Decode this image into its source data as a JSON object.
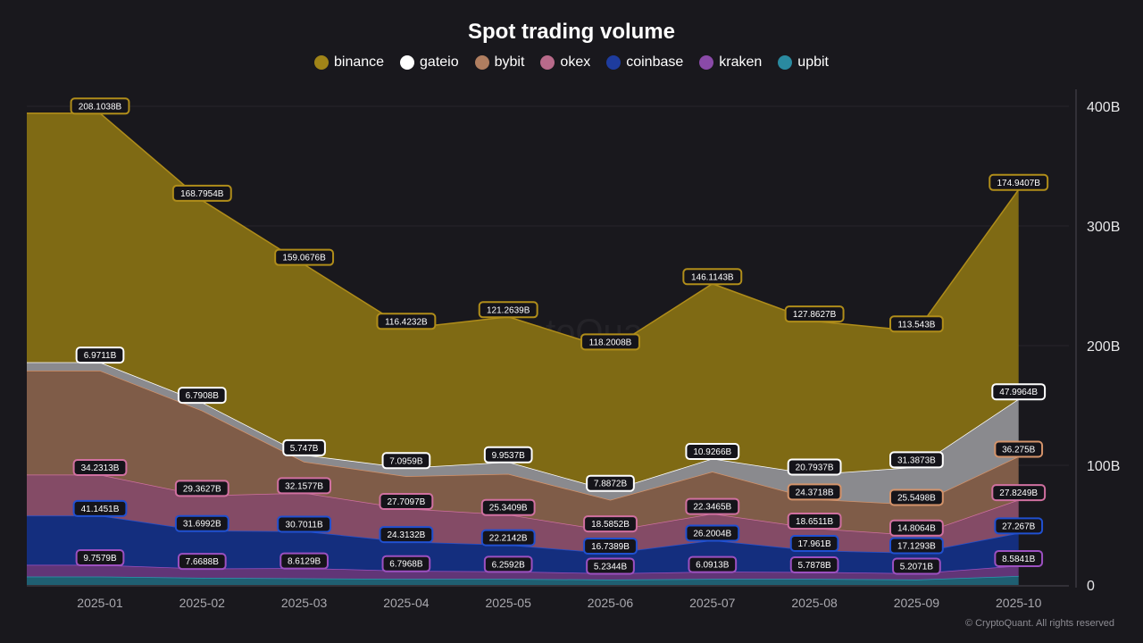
{
  "chart_data": {
    "type": "area",
    "stacked": true,
    "title": "Spot trading volume",
    "categories": [
      "2025-01",
      "2025-02",
      "2025-03",
      "2025-04",
      "2025-05",
      "2025-06",
      "2025-07",
      "2025-08",
      "2025-09",
      "2025-10"
    ],
    "ylim": [
      0,
      420
    ],
    "yticks": [
      "0",
      "100B",
      "200B",
      "300B",
      "400B"
    ],
    "ytick_values": [
      0,
      100,
      200,
      300,
      400
    ],
    "y_axis_side": "right",
    "grid": true,
    "legend_placement": "top",
    "series": [
      {
        "name": "upbit",
        "fill": "#1f5f72",
        "stroke": "#2a9ab0",
        "dot": "#2a8aa0",
        "values": [
          7,
          6,
          5.5,
          5,
          5,
          4.5,
          5,
          5,
          4.5,
          7.5
        ],
        "labels": [
          null,
          null,
          null,
          null,
          null,
          null,
          null,
          null,
          null,
          null
        ]
      },
      {
        "name": "kraken",
        "fill": "#613577",
        "stroke": "#9c50c0",
        "dot": "#8a4aa8",
        "values": [
          9.7579,
          7.6688,
          8.6129,
          6.7968,
          6.2592,
          5.2344,
          6.0913,
          5.7878,
          5.2071,
          8.5841
        ],
        "labels": [
          "9.7579B",
          "7.6688B",
          "8.6129B",
          "6.7968B",
          "6.2592B",
          "5.2344B",
          "6.0913B",
          "5.7878B",
          "5.2071B",
          "8.5841B"
        ]
      },
      {
        "name": "coinbase",
        "fill": "#142e7e",
        "stroke": "#2050d0",
        "dot": "#1e3c9e",
        "values": [
          41.1451,
          31.6992,
          30.7011,
          24.3132,
          22.2142,
          16.7389,
          26.2004,
          17.961,
          17.1293,
          27.267
        ],
        "labels": [
          "41.1451B",
          "31.6992B",
          "30.7011B",
          "24.3132B",
          "22.2142B",
          "16.7389B",
          "26.2004B",
          "17.961B",
          "17.1293B",
          "27.267B"
        ]
      },
      {
        "name": "okex",
        "fill": "#844b66",
        "stroke": "#d070a0",
        "dot": "#b86a8a",
        "values": [
          34.2313,
          29.3627,
          32.1577,
          27.7097,
          25.3409,
          18.5852,
          22.3465,
          18.6511,
          14.8064,
          27.8249
        ],
        "labels": [
          "34.2313B",
          "29.3627B",
          "32.1577B",
          "27.7097B",
          "25.3409B",
          "18.5852B",
          "22.3465B",
          "18.6511B",
          "14.8064B",
          "27.8249B"
        ]
      },
      {
        "name": "bybit",
        "fill": "#7f5c48",
        "stroke": "#d4936a",
        "dot": "#b07e60",
        "values": [
          87,
          71,
          26,
          27,
          34,
          26,
          35,
          24.3718,
          25.5498,
          36.275
        ],
        "labels": [
          null,
          null,
          null,
          null,
          null,
          null,
          null,
          "24.3718B",
          "25.5498B",
          "36.275B"
        ]
      },
      {
        "name": "gateio",
        "fill": "#8a8a8e",
        "stroke": "#ffffff",
        "dot": "#ffffff",
        "values": [
          6.9711,
          6.7908,
          5.747,
          7.0959,
          9.9537,
          7.8872,
          10.9266,
          20.7937,
          31.3873,
          47.9964
        ],
        "labels": [
          "6.9711B",
          "6.7908B",
          "5.747B",
          "7.0959B",
          "9.9537B",
          "7.8872B",
          "10.9266B",
          "20.7937B",
          "31.3873B",
          "47.9964B"
        ]
      },
      {
        "name": "binance",
        "fill": "#7f6a14",
        "stroke": "#b08d1a",
        "dot": "#a08418",
        "values": [
          208.1038,
          168.7954,
          159.0676,
          116.4232,
          121.2639,
          118.2008,
          146.1143,
          127.8627,
          113.543,
          174.9407
        ],
        "labels": [
          "208.1038B",
          "168.7954B",
          "159.0676B",
          "116.4232B",
          "121.2639B",
          "118.2008B",
          "146.1143B",
          "127.8627B",
          "113.543B",
          "174.9407B"
        ]
      }
    ],
    "legend_order": [
      "binance",
      "gateio",
      "bybit",
      "okex",
      "coinbase",
      "kraken",
      "upbit"
    ]
  },
  "watermark": "CryptoQuant",
  "copyright": "© CryptoQuant. All rights reserved"
}
